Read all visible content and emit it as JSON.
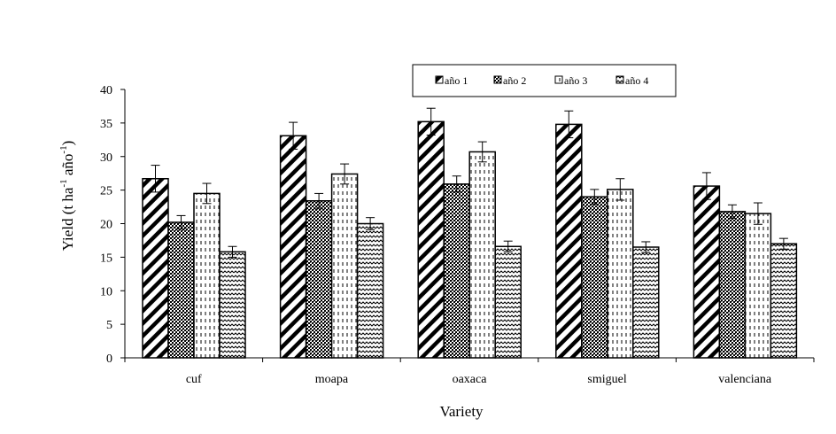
{
  "chart_data": {
    "type": "bar",
    "categories": [
      "cuf",
      "moapa",
      "oaxaca",
      "smiguel",
      "valenciana"
    ],
    "series": [
      {
        "name": "año 1",
        "values": [
          26.7,
          33.1,
          35.2,
          34.8,
          25.6
        ],
        "errors": [
          2.0,
          2.0,
          2.0,
          2.0,
          2.0
        ]
      },
      {
        "name": "año 2",
        "values": [
          20.2,
          23.4,
          25.9,
          24.0,
          21.8
        ],
        "errors": [
          1.0,
          1.1,
          1.2,
          1.1,
          1.0
        ]
      },
      {
        "name": "año 3",
        "values": [
          24.5,
          27.4,
          30.7,
          25.1,
          21.5
        ],
        "errors": [
          1.5,
          1.5,
          1.5,
          1.6,
          1.6
        ]
      },
      {
        "name": "año 4",
        "values": [
          15.8,
          20.0,
          16.6,
          16.5,
          17.0
        ],
        "errors": [
          0.8,
          0.9,
          0.8,
          0.8,
          0.8
        ]
      }
    ],
    "patterns": [
      "wide-diagonal",
      "crosshatch",
      "vertical-dashes",
      "wave"
    ],
    "xlabel": "Variety",
    "ylabel": {
      "base": "Yield (t ha",
      "sup1": "-1",
      "mid": " año",
      "sup2": "-1",
      "end": ")"
    },
    "ylim": [
      0,
      40
    ],
    "yticks": [
      0,
      5,
      10,
      15,
      20,
      25,
      30,
      35,
      40
    ],
    "grid": false,
    "legend_position": "top"
  }
}
